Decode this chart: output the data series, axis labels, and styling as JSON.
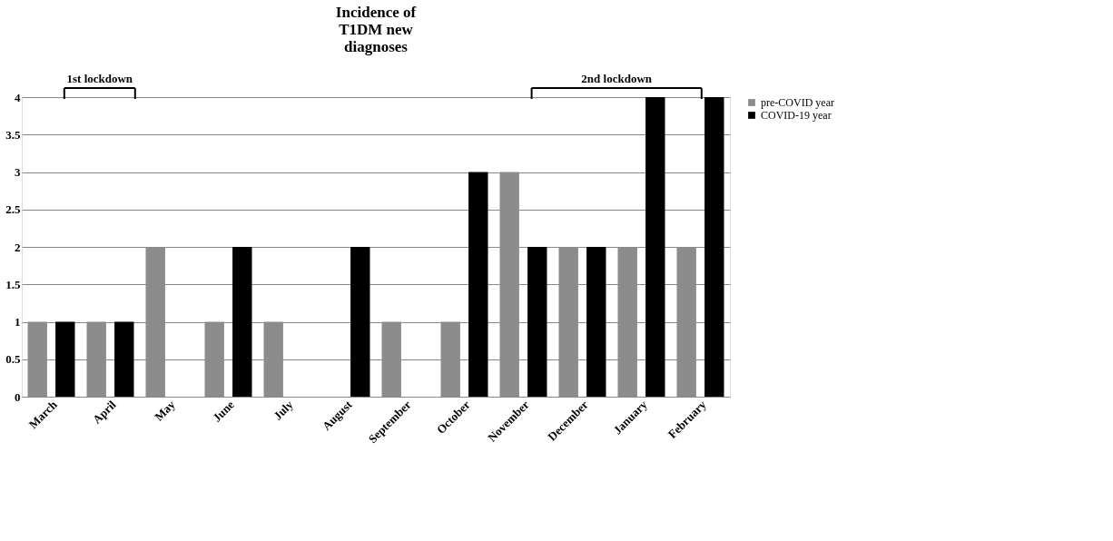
{
  "chart_data": {
    "type": "bar",
    "title": [
      "Incidence of",
      "T1DM new",
      "diagnoses"
    ],
    "categories": [
      "March",
      "April",
      "May",
      "June",
      "July",
      "August",
      "September",
      "October",
      "November",
      "December",
      "January",
      "February"
    ],
    "series": [
      {
        "name": "pre-COVID year",
        "color": "#8c8c8c",
        "values": [
          1,
          1,
          2,
          1,
          1,
          0,
          1,
          1,
          3,
          2,
          2,
          2
        ]
      },
      {
        "name": "COVID-19 year",
        "color": "#000000",
        "values": [
          1,
          1,
          0,
          2,
          0,
          2,
          0,
          3,
          2,
          2,
          4,
          4
        ]
      }
    ],
    "ylim": [
      0,
      4
    ],
    "yticks": [
      0,
      0.5,
      1,
      1.5,
      2,
      2.5,
      3,
      3.5,
      4
    ],
    "grid": "y",
    "legend": "top right",
    "annotations": [
      "1st lockdown",
      "2nd lockdown"
    ]
  }
}
